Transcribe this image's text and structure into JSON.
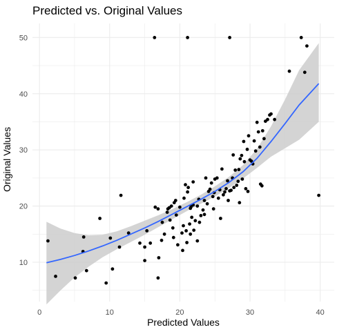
{
  "chart_data": {
    "type": "scatter",
    "title": "Predicted vs. Original Values",
    "xlabel": "Predicted Values",
    "ylabel": "Original Values",
    "xlim": [
      -1,
      42
    ],
    "ylim": [
      3,
      52.5
    ],
    "x_ticks": [
      0,
      10,
      20,
      30,
      40
    ],
    "y_ticks": [
      10,
      20,
      30,
      40,
      50
    ],
    "grid": true,
    "legend": "none",
    "colors": {
      "points": "#000000",
      "trend": "#3366FF",
      "band": "#cccccc",
      "grid": "#ebebeb"
    },
    "points": [
      {
        "x": 1.2,
        "y": 13.8
      },
      {
        "x": 2.3,
        "y": 7.5
      },
      {
        "x": 5.1,
        "y": 7.2
      },
      {
        "x": 6.3,
        "y": 14.5
      },
      {
        "x": 6.2,
        "y": 11.9
      },
      {
        "x": 6.7,
        "y": 8.5
      },
      {
        "x": 8.6,
        "y": 17.8
      },
      {
        "x": 9.5,
        "y": 6.3
      },
      {
        "x": 10.1,
        "y": 14.3
      },
      {
        "x": 10.4,
        "y": 8.8
      },
      {
        "x": 11.4,
        "y": 12.7
      },
      {
        "x": 11.6,
        "y": 21.9
      },
      {
        "x": 12.7,
        "y": 15.2
      },
      {
        "x": 14.3,
        "y": 13.4
      },
      {
        "x": 15.0,
        "y": 10.3
      },
      {
        "x": 15.0,
        "y": 12.7
      },
      {
        "x": 15.3,
        "y": 15.6
      },
      {
        "x": 15.8,
        "y": 13.4
      },
      {
        "x": 16.4,
        "y": 50.0
      },
      {
        "x": 16.5,
        "y": 19.8
      },
      {
        "x": 16.9,
        "y": 19.5
      },
      {
        "x": 16.9,
        "y": 7.2
      },
      {
        "x": 17.0,
        "y": 10.8
      },
      {
        "x": 17.4,
        "y": 13.9
      },
      {
        "x": 17.5,
        "y": 17.1
      },
      {
        "x": 17.8,
        "y": 15.0
      },
      {
        "x": 18.2,
        "y": 18.9
      },
      {
        "x": 18.3,
        "y": 19.5
      },
      {
        "x": 18.5,
        "y": 19.7
      },
      {
        "x": 18.6,
        "y": 17.5
      },
      {
        "x": 18.8,
        "y": 20.0
      },
      {
        "x": 19.0,
        "y": 16.1
      },
      {
        "x": 19.1,
        "y": 14.4
      },
      {
        "x": 19.2,
        "y": 20.6
      },
      {
        "x": 19.4,
        "y": 21.0
      },
      {
        "x": 19.5,
        "y": 18.4
      },
      {
        "x": 19.7,
        "y": 13.1
      },
      {
        "x": 20.0,
        "y": 19.8
      },
      {
        "x": 20.3,
        "y": 15.2
      },
      {
        "x": 20.4,
        "y": 12.1
      },
      {
        "x": 20.5,
        "y": 16.5
      },
      {
        "x": 20.6,
        "y": 21.4
      },
      {
        "x": 20.8,
        "y": 23.8
      },
      {
        "x": 20.9,
        "y": 15.6
      },
      {
        "x": 21.0,
        "y": 13.5
      },
      {
        "x": 21.1,
        "y": 22.5
      },
      {
        "x": 21.2,
        "y": 23.3
      },
      {
        "x": 21.4,
        "y": 16.8
      },
      {
        "x": 21.5,
        "y": 15.0
      },
      {
        "x": 21.5,
        "y": 19.6
      },
      {
        "x": 21.6,
        "y": 19.9
      },
      {
        "x": 21.7,
        "y": 18.0
      },
      {
        "x": 21.9,
        "y": 20.2
      },
      {
        "x": 21.1,
        "y": 50.0
      },
      {
        "x": 21.9,
        "y": 24.3
      },
      {
        "x": 22.0,
        "y": 15.7
      },
      {
        "x": 22.2,
        "y": 17.4
      },
      {
        "x": 22.5,
        "y": 20.0
      },
      {
        "x": 22.5,
        "y": 13.8
      },
      {
        "x": 22.7,
        "y": 21.2
      },
      {
        "x": 22.8,
        "y": 17.1
      },
      {
        "x": 23.0,
        "y": 18.3
      },
      {
        "x": 23.3,
        "y": 19.3
      },
      {
        "x": 23.5,
        "y": 21.0
      },
      {
        "x": 23.5,
        "y": 18.5
      },
      {
        "x": 23.7,
        "y": 25.0
      },
      {
        "x": 23.9,
        "y": 20.4
      },
      {
        "x": 24.1,
        "y": 22.6
      },
      {
        "x": 24.3,
        "y": 23.0
      },
      {
        "x": 24.5,
        "y": 24.1
      },
      {
        "x": 24.7,
        "y": 21.7
      },
      {
        "x": 24.8,
        "y": 19.5
      },
      {
        "x": 24.9,
        "y": 22.4
      },
      {
        "x": 25.0,
        "y": 24.8
      },
      {
        "x": 25.3,
        "y": 25.0
      },
      {
        "x": 25.5,
        "y": 21.4
      },
      {
        "x": 25.7,
        "y": 22.9
      },
      {
        "x": 25.8,
        "y": 17.8
      },
      {
        "x": 26.0,
        "y": 26.6
      },
      {
        "x": 26.2,
        "y": 22.0
      },
      {
        "x": 26.4,
        "y": 22.5
      },
      {
        "x": 26.6,
        "y": 23.1
      },
      {
        "x": 26.8,
        "y": 24.5
      },
      {
        "x": 26.9,
        "y": 21.0
      },
      {
        "x": 27.1,
        "y": 22.7
      },
      {
        "x": 27.3,
        "y": 22.8
      },
      {
        "x": 27.5,
        "y": 25.0
      },
      {
        "x": 27.6,
        "y": 29.1
      },
      {
        "x": 27.1,
        "y": 50.0
      },
      {
        "x": 27.7,
        "y": 23.3
      },
      {
        "x": 27.9,
        "y": 26.4
      },
      {
        "x": 28.1,
        "y": 23.7
      },
      {
        "x": 28.3,
        "y": 24.4
      },
      {
        "x": 28.4,
        "y": 26.5
      },
      {
        "x": 28.5,
        "y": 20.6
      },
      {
        "x": 28.6,
        "y": 28.4
      },
      {
        "x": 28.8,
        "y": 29.0
      },
      {
        "x": 28.9,
        "y": 24.8
      },
      {
        "x": 29.1,
        "y": 31.5
      },
      {
        "x": 29.2,
        "y": 27.9
      },
      {
        "x": 29.4,
        "y": 23.1
      },
      {
        "x": 29.6,
        "y": 30.1
      },
      {
        "x": 29.7,
        "y": 22.6
      },
      {
        "x": 29.8,
        "y": 32.5
      },
      {
        "x": 30.0,
        "y": 28.2
      },
      {
        "x": 30.2,
        "y": 28.0
      },
      {
        "x": 30.4,
        "y": 27.5
      },
      {
        "x": 30.6,
        "y": 31.6
      },
      {
        "x": 30.8,
        "y": 29.8
      },
      {
        "x": 31.0,
        "y": 34.9
      },
      {
        "x": 31.2,
        "y": 33.2
      },
      {
        "x": 31.4,
        "y": 30.5
      },
      {
        "x": 31.5,
        "y": 23.9
      },
      {
        "x": 31.7,
        "y": 23.6
      },
      {
        "x": 31.8,
        "y": 33.4
      },
      {
        "x": 32.0,
        "y": 32.0
      },
      {
        "x": 32.2,
        "y": 35.1
      },
      {
        "x": 32.5,
        "y": 35.4
      },
      {
        "x": 32.8,
        "y": 36.2
      },
      {
        "x": 33.0,
        "y": 36.4
      },
      {
        "x": 33.5,
        "y": 35.4
      },
      {
        "x": 35.6,
        "y": 44.0
      },
      {
        "x": 37.3,
        "y": 50.0
      },
      {
        "x": 37.8,
        "y": 43.8
      },
      {
        "x": 38.1,
        "y": 48.5
      },
      {
        "x": 39.8,
        "y": 21.9
      }
    ],
    "trend": {
      "x": [
        1,
        3,
        5,
        7,
        9,
        11,
        13,
        15,
        17,
        19,
        21,
        23,
        25,
        27,
        29,
        31,
        33,
        35,
        37,
        39.8
      ],
      "fit": [
        9.9,
        10.5,
        11.2,
        12.0,
        12.9,
        13.9,
        15.0,
        16.1,
        17.3,
        18.6,
        19.9,
        21.2,
        22.6,
        24.2,
        26.1,
        28.5,
        31.5,
        34.7,
        38.0,
        41.8
      ],
      "lower": [
        2.5,
        5.0,
        7.3,
        9.2,
        10.9,
        12.3,
        13.6,
        14.9,
        16.3,
        17.7,
        19.1,
        20.4,
        21.7,
        23.2,
        24.9,
        26.8,
        28.8,
        30.3,
        31.8,
        35.0
      ],
      "upper": [
        17.2,
        16.0,
        15.2,
        14.8,
        14.9,
        15.5,
        16.4,
        17.4,
        18.4,
        19.5,
        20.7,
        22.0,
        23.5,
        25.2,
        27.3,
        30.2,
        34.2,
        39.0,
        44.2,
        49.0
      ]
    }
  }
}
